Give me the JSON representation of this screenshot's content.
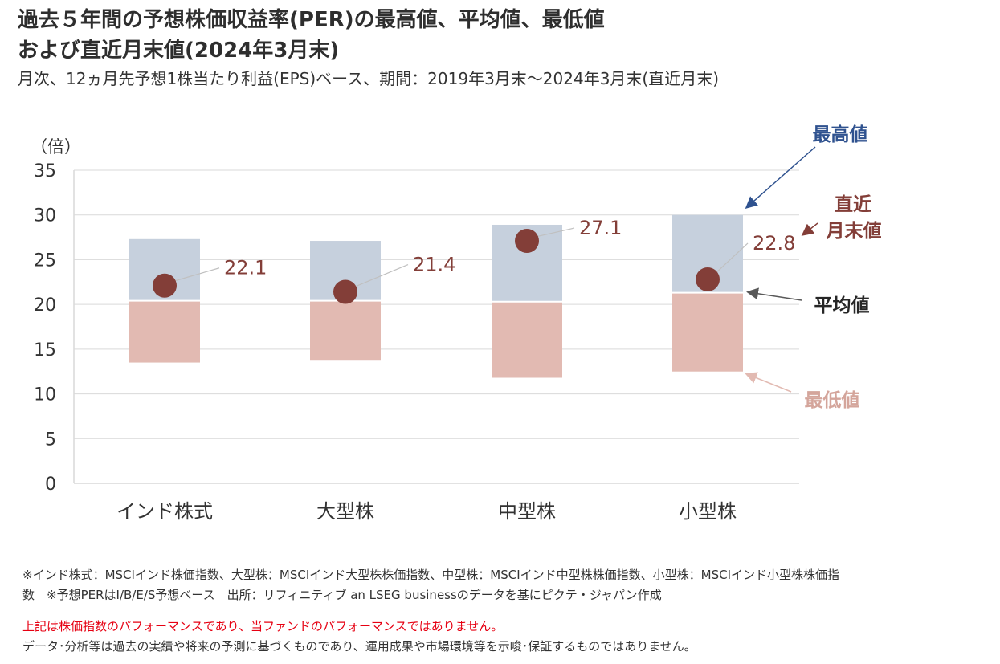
{
  "title_lines": [
    "過去５年間の予想株価収益率(PER)の最高値、平均値、最低値",
    "および直近月末値(2024年3月末)"
  ],
  "subtitle": "月次、12ヵ月先予想1株当たり利益(EPS)ベース、期間：2019年3月末～2024年3月末(直近月末)",
  "chart_data": {
    "type": "floating-bar",
    "y_unit_label": "（倍）",
    "ylim": [
      0,
      35
    ],
    "yticks": [
      "35",
      "30",
      "25",
      "20",
      "15",
      "10",
      "5",
      "0"
    ],
    "grid": true,
    "categories": [
      "インド株式",
      "大型株",
      "中型株",
      "小型株"
    ],
    "max": [
      27.3,
      27.1,
      28.9,
      30.0
    ],
    "avg": [
      20.4,
      20.4,
      20.3,
      21.3
    ],
    "min": [
      13.5,
      13.8,
      11.8,
      12.5
    ],
    "latest": [
      22.1,
      21.4,
      27.1,
      22.8
    ],
    "latest_labels": [
      "22.1",
      "21.4",
      "27.1",
      "22.8"
    ],
    "annotations": {
      "max_label": "最高値",
      "latest_label_line1": "直近",
      "latest_label_line2": "月末値",
      "avg_label": "平均値",
      "min_label": "最低値"
    },
    "colors": {
      "upper": "#c6d0dd",
      "lower": "#e2bab2",
      "marker": "#833e38",
      "grid": "#d9d9d9",
      "max_text": "#2f528f",
      "latest_text": "#833e38",
      "avg_text": "#262626",
      "min_text": "#d4a59b",
      "max_arrow": "#2f528f",
      "avg_arrow": "#595959",
      "min_arrow": "#e2bab2"
    }
  },
  "notes": {
    "line1": "※インド株式：MSCIインド株価指数、大型株：MSCIインド大型株株価指数、中型株：MSCIインド中型株株価指数、小型株：MSCIインド小型株株価指",
    "line2": "数　※予想PERはI/B/E/S予想ベース　出所：リフィニティブ an LSEG businessのデータを基にピクテ・ジャパン作成",
    "warning": "上記は株価指数のパフォーマンスであり、当ファンドのパフォーマンスではありません。",
    "disclaimer": "データ･分析等は過去の実績や将来の予測に基づくものであり、運用成果や市場環境等を示唆･保証するものではありません。"
  }
}
